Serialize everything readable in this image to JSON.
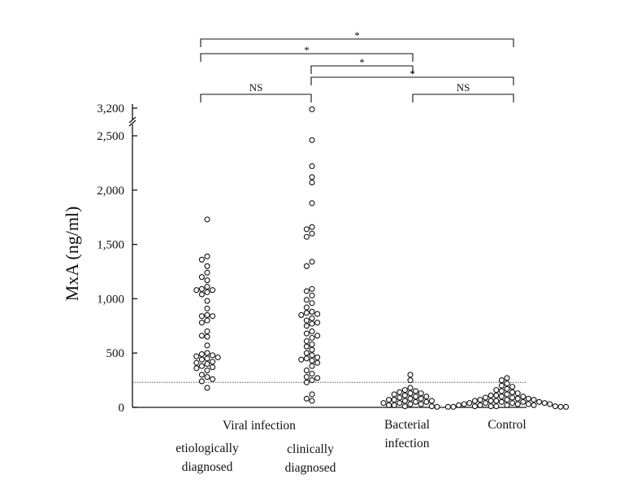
{
  "chart_data": {
    "type": "scatter",
    "subtype": "dot-plot",
    "ylabel": "MxA  (ng/ml)",
    "ylim": [
      0,
      2500
    ],
    "y_ticks": [
      {
        "value": 0,
        "label": "0"
      },
      {
        "value": 500,
        "label": "500"
      },
      {
        "value": 1000,
        "label": "1,000"
      },
      {
        "value": 1500,
        "label": "1,500"
      },
      {
        "value": 2000,
        "label": "2,000"
      },
      {
        "value": 2500,
        "label": "2,500"
      }
    ],
    "axis_break": {
      "above": 2500,
      "top_value": 3200,
      "top_label": "3,200"
    },
    "threshold": 230,
    "groups": [
      {
        "name": "etiologically diagnosed",
        "values": [
          1730,
          1390,
          1360,
          1300,
          1240,
          1200,
          1170,
          1110,
          1090,
          1080,
          1080,
          1060,
          1040,
          980,
          910,
          850,
          840,
          840,
          800,
          780,
          700,
          660,
          650,
          570,
          500,
          490,
          480,
          470,
          460,
          450,
          440,
          420,
          410,
          400,
          380,
          370,
          360,
          340,
          300,
          280,
          260,
          240,
          180
        ]
      },
      {
        "name": "clinically diagnosed",
        "values": [
          3170,
          2460,
          2220,
          2120,
          2070,
          1880,
          1660,
          1640,
          1600,
          1570,
          1340,
          1300,
          1090,
          1070,
          1030,
          990,
          960,
          920,
          880,
          870,
          860,
          850,
          820,
          800,
          780,
          770,
          750,
          700,
          680,
          660,
          640,
          610,
          580,
          560,
          530,
          500,
          480,
          460,
          450,
          440,
          430,
          410,
          380,
          340,
          310,
          280,
          270,
          250,
          230,
          120,
          80,
          60
        ]
      },
      {
        "name": "Bacterial infection",
        "values": [
          300,
          250,
          180,
          160,
          150,
          140,
          130,
          130,
          120,
          110,
          100,
          100,
          90,
          80,
          80,
          70,
          70,
          60,
          60,
          50,
          50,
          40,
          40,
          30,
          30,
          20,
          20,
          10,
          10,
          5
        ]
      },
      {
        "name": "Control",
        "values": [
          270,
          250,
          220,
          200,
          190,
          170,
          160,
          150,
          140,
          130,
          120,
          110,
          110,
          100,
          100,
          90,
          90,
          80,
          80,
          70,
          70,
          70,
          60,
          60,
          60,
          50,
          50,
          50,
          40,
          40,
          40,
          40,
          30,
          30,
          30,
          30,
          20,
          20,
          20,
          20,
          10,
          10,
          10,
          10,
          5,
          5,
          5,
          5
        ]
      }
    ],
    "category_labels": {
      "viral_infection": "Viral infection",
      "etiologically": [
        "etiologically",
        "diagnosed"
      ],
      "clinically": [
        "clinically",
        "diagnosed"
      ],
      "bacterial": [
        "Bacterial",
        "infection"
      ],
      "control": "Control"
    },
    "comparisons": [
      {
        "from": "etiologically diagnosed",
        "to": "Control",
        "label": "*"
      },
      {
        "from": "etiologically diagnosed",
        "to": "Bacterial infection",
        "label": "*"
      },
      {
        "from": "clinically diagnosed",
        "to": "Bacterial infection",
        "label": "*"
      },
      {
        "from": "clinically diagnosed",
        "to": "Control",
        "label": "*"
      },
      {
        "from": "etiologically diagnosed",
        "to": "clinically diagnosed",
        "label": "NS"
      },
      {
        "from": "Bacterial infection",
        "to": "Control",
        "label": "NS"
      }
    ]
  }
}
